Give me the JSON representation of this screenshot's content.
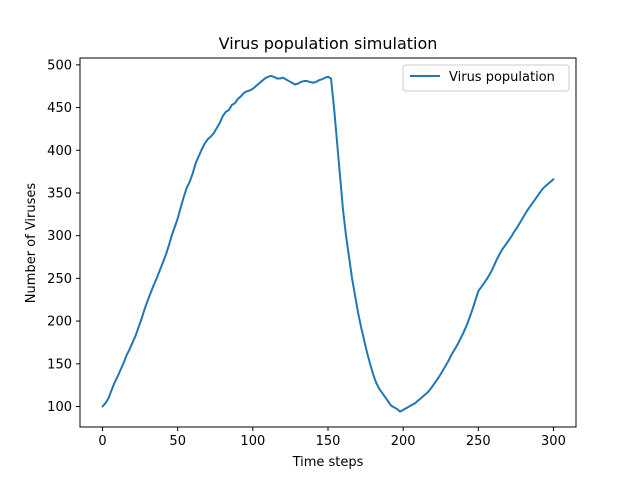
{
  "chart_data": {
    "type": "line",
    "title": "Virus population simulation",
    "xlabel": "Time steps",
    "ylabel": "Number of Viruses",
    "xlim": [
      -15,
      315
    ],
    "ylim": [
      76,
      508
    ],
    "xticks": [
      0,
      50,
      100,
      150,
      200,
      250,
      300
    ],
    "yticks": [
      100,
      150,
      200,
      250,
      300,
      350,
      400,
      450,
      500
    ],
    "grid": false,
    "legend_position": "top-right",
    "series": [
      {
        "name": "Virus population",
        "color": "#1f77b4",
        "x": [
          0,
          2,
          4,
          6,
          8,
          10,
          12,
          14,
          16,
          18,
          20,
          22,
          24,
          26,
          28,
          30,
          32,
          34,
          36,
          38,
          40,
          42,
          44,
          46,
          48,
          50,
          52,
          54,
          56,
          58,
          60,
          62,
          64,
          66,
          68,
          70,
          72,
          74,
          76,
          78,
          80,
          82,
          84,
          86,
          88,
          90,
          92,
          94,
          96,
          98,
          100,
          102,
          104,
          106,
          108,
          110,
          112,
          114,
          116,
          118,
          120,
          122,
          124,
          126,
          128,
          130,
          132,
          134,
          136,
          138,
          140,
          142,
          144,
          146,
          148,
          150,
          152,
          154,
          156,
          158,
          160,
          162,
          164,
          166,
          168,
          170,
          172,
          174,
          176,
          178,
          180,
          182,
          184,
          186,
          188,
          190,
          192,
          194,
          196,
          198,
          200,
          202,
          204,
          206,
          208,
          210,
          212,
          214,
          216,
          218,
          220,
          222,
          224,
          226,
          228,
          230,
          232,
          234,
          236,
          238,
          240,
          242,
          244,
          246,
          248,
          250,
          252,
          254,
          256,
          258,
          260,
          262,
          264,
          266,
          268,
          270,
          272,
          274,
          276,
          278,
          280,
          282,
          284,
          286,
          288,
          290,
          292,
          294,
          296,
          298,
          300
        ],
        "values": [
          100,
          104,
          110,
          119,
          128,
          135,
          143,
          151,
          160,
          167,
          175,
          183,
          193,
          203,
          214,
          224,
          233,
          242,
          250,
          259,
          268,
          277,
          288,
          300,
          310,
          320,
          333,
          345,
          356,
          363,
          373,
          385,
          393,
          401,
          408,
          413,
          416,
          420,
          426,
          432,
          440,
          445,
          447,
          453,
          455,
          460,
          463,
          467,
          469,
          470,
          472,
          475,
          478,
          481,
          484,
          486,
          487,
          486,
          484,
          484,
          485,
          483,
          481,
          479,
          477,
          478,
          480,
          481,
          481,
          480,
          479,
          480,
          482,
          483,
          485,
          486,
          484,
          450,
          410,
          370,
          330,
          300,
          275,
          250,
          230,
          210,
          193,
          178,
          163,
          150,
          138,
          128,
          121,
          116,
          111,
          106,
          101,
          99,
          97,
          94,
          96,
          98,
          100,
          102,
          104,
          107,
          110,
          113,
          116,
          120,
          125,
          130,
          135,
          141,
          147,
          153,
          160,
          166,
          172,
          179,
          186,
          194,
          203,
          213,
          224,
          235,
          240,
          245,
          250,
          256,
          263,
          271,
          278,
          284,
          289,
          294,
          299,
          305,
          310,
          316,
          322,
          328,
          333,
          338,
          343,
          348,
          353,
          357,
          360,
          363,
          366
        ]
      }
    ]
  }
}
